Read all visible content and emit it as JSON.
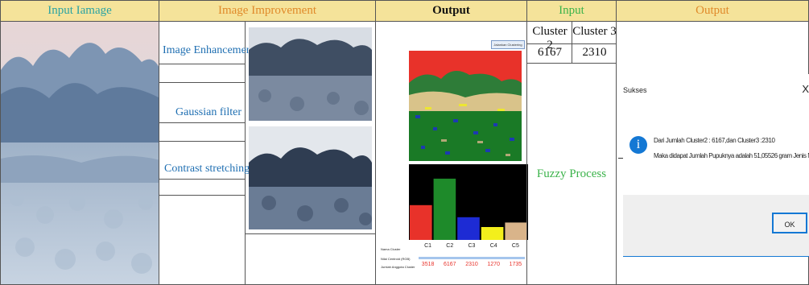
{
  "headers": {
    "input_image": "Input Iamage",
    "image_improvement": "Image Improvement",
    "output1": "Output",
    "input2": "Input",
    "output2": "Output"
  },
  "improvement_labels": {
    "enhancement": "Image Enhancement",
    "gaussian": "Gaussian filter",
    "contrast": "Contrast stretching"
  },
  "output_panel": {
    "button_label": "Jalankan Clustering",
    "row_labels": [
      "Nama Cluster",
      "Nilai Centroid (RGB)",
      "Jumlah Anggota Cluster"
    ],
    "clusters": [
      "C1",
      "C2",
      "C3",
      "C4",
      "C5"
    ],
    "counts": [
      "3518",
      "6167",
      "2310",
      "1270",
      "1735"
    ],
    "bar_fractions": [
      0.46,
      0.81,
      0.3,
      0.17,
      0.23
    ],
    "bar_colors": [
      "#e8322a",
      "#1e8a2a",
      "#1d2bd4",
      "#f3ef1c",
      "#d9b48a"
    ]
  },
  "input_panel": {
    "col_headers": [
      "Cluster 2",
      "Cluster 3"
    ],
    "values": [
      "6167",
      "2310"
    ],
    "process_label": "Fuzzy Process"
  },
  "dialog": {
    "title": "Sukses",
    "close": "X",
    "line1": "Dari Jumlah Cluster2 : 6167,dan Cluster3 :2310",
    "line2": "Maka didapat Jumlah Pupuknya adalah 51,05526 gram Jenis NPK",
    "ok": "OK",
    "icon": "info-icon"
  },
  "colors": {
    "header_bg": "#f5e39a",
    "teal": "#2aa3a3",
    "orange": "#e08a2a",
    "green": "#3bb34a"
  }
}
